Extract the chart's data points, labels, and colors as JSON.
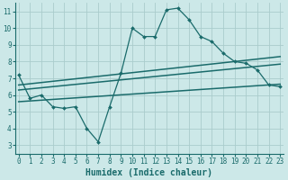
{
  "background_color": "#cce8e8",
  "grid_color": "#aacccc",
  "line_color": "#1a6b6b",
  "line1_x": [
    0,
    1,
    2,
    3,
    4,
    5,
    6,
    7,
    8,
    9,
    10,
    11,
    12,
    13,
    14,
    15,
    16,
    17,
    18,
    19,
    20,
    21,
    22,
    23
  ],
  "line1_y": [
    7.2,
    5.8,
    6.0,
    5.3,
    5.2,
    5.3,
    4.0,
    3.2,
    5.3,
    7.3,
    10.0,
    9.5,
    9.5,
    11.1,
    11.2,
    10.5,
    9.5,
    9.2,
    8.5,
    8.0,
    7.9,
    7.5,
    6.6,
    6.5
  ],
  "line2_x": [
    0,
    23
  ],
  "line2_y": [
    6.6,
    8.3
  ],
  "line3_x": [
    0,
    23
  ],
  "line3_y": [
    6.3,
    7.85
  ],
  "line4_x": [
    0,
    23
  ],
  "line4_y": [
    5.6,
    6.65
  ],
  "xlim": [
    -0.3,
    23.3
  ],
  "ylim": [
    2.5,
    11.5
  ],
  "yticks": [
    3,
    4,
    5,
    6,
    7,
    8,
    9,
    10,
    11
  ],
  "xticks": [
    0,
    1,
    2,
    3,
    4,
    5,
    6,
    7,
    8,
    9,
    10,
    11,
    12,
    13,
    14,
    15,
    16,
    17,
    18,
    19,
    20,
    21,
    22,
    23
  ],
  "xlabel": "Humidex (Indice chaleur)",
  "tick_fontsize": 5.5,
  "label_fontsize": 7.0
}
